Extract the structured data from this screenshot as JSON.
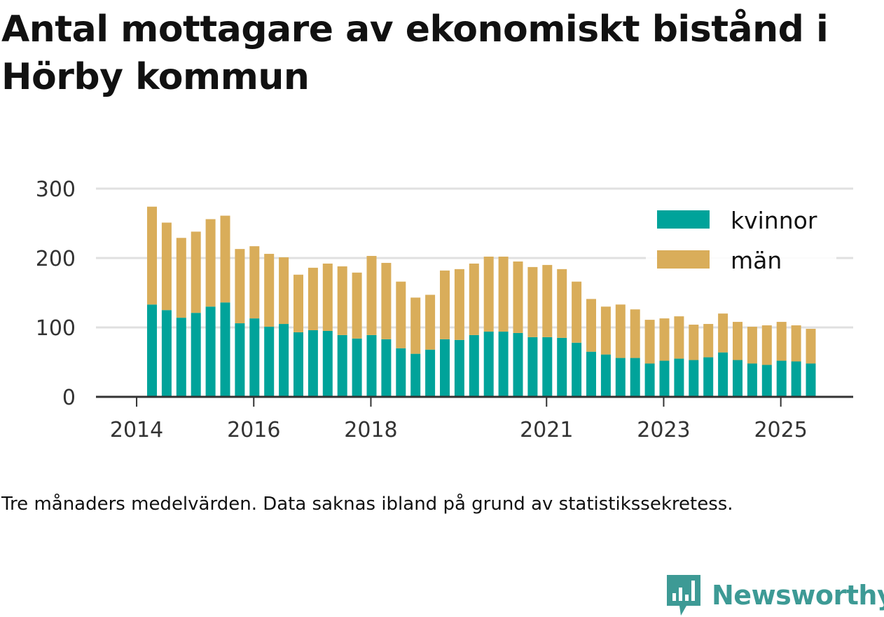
{
  "title": "Antal mottagare av ekonomiskt bistånd i Hörby kommun",
  "note": "Tre månaders medelvärden. Data saknas ibland på grund av statistikssekretess.",
  "brand": {
    "name": "Newsworthy",
    "logo_icon": "bar-chart-speech-bubble-icon"
  },
  "colors": {
    "kvinnor": "#00a39a",
    "man": "#d9ad5a",
    "grid": "#e0e0e0",
    "axis": "#333333",
    "brand": "#3d9a95"
  },
  "chart_data": {
    "type": "bar",
    "stacked": true,
    "title": "Antal mottagare av ekonomiskt bistånd i Hörby kommun",
    "xlabel": "",
    "ylabel": "",
    "ylim": [
      0,
      300
    ],
    "yticks": [
      0,
      100,
      200,
      300
    ],
    "xticks": [
      {
        "label": "2014",
        "index": -1.05
      },
      {
        "label": "2016",
        "index": 6.95
      },
      {
        "label": "2018",
        "index": 14.95
      },
      {
        "label": "2021",
        "index": 26.95
      },
      {
        "label": "2023",
        "index": 34.95
      },
      {
        "label": "2025",
        "index": 42.95
      }
    ],
    "legend": {
      "position": "top-right",
      "entries": [
        "kvinnor",
        "män"
      ]
    },
    "series": [
      {
        "name": "kvinnor",
        "color": "#00a39a",
        "values": [
          133,
          125,
          114,
          121,
          130,
          136,
          106,
          113,
          101,
          105,
          93,
          96,
          95,
          89,
          84,
          89,
          83,
          70,
          62,
          68,
          83,
          82,
          89,
          94,
          94,
          92,
          86,
          86,
          85,
          78,
          65,
          61,
          56,
          56,
          48,
          52,
          55,
          53,
          57,
          64,
          53,
          48,
          46,
          52,
          51,
          48
        ]
      },
      {
        "name": "män",
        "color": "#d9ad5a",
        "values": [
          141,
          126,
          115,
          117,
          126,
          125,
          107,
          104,
          105,
          96,
          83,
          90,
          97,
          99,
          95,
          114,
          110,
          96,
          81,
          79,
          99,
          102,
          103,
          108,
          108,
          103,
          101,
          104,
          99,
          88,
          76,
          69,
          77,
          70,
          63,
          61,
          61,
          51,
          48,
          56,
          55,
          53,
          57,
          56,
          52,
          50
        ]
      }
    ]
  }
}
